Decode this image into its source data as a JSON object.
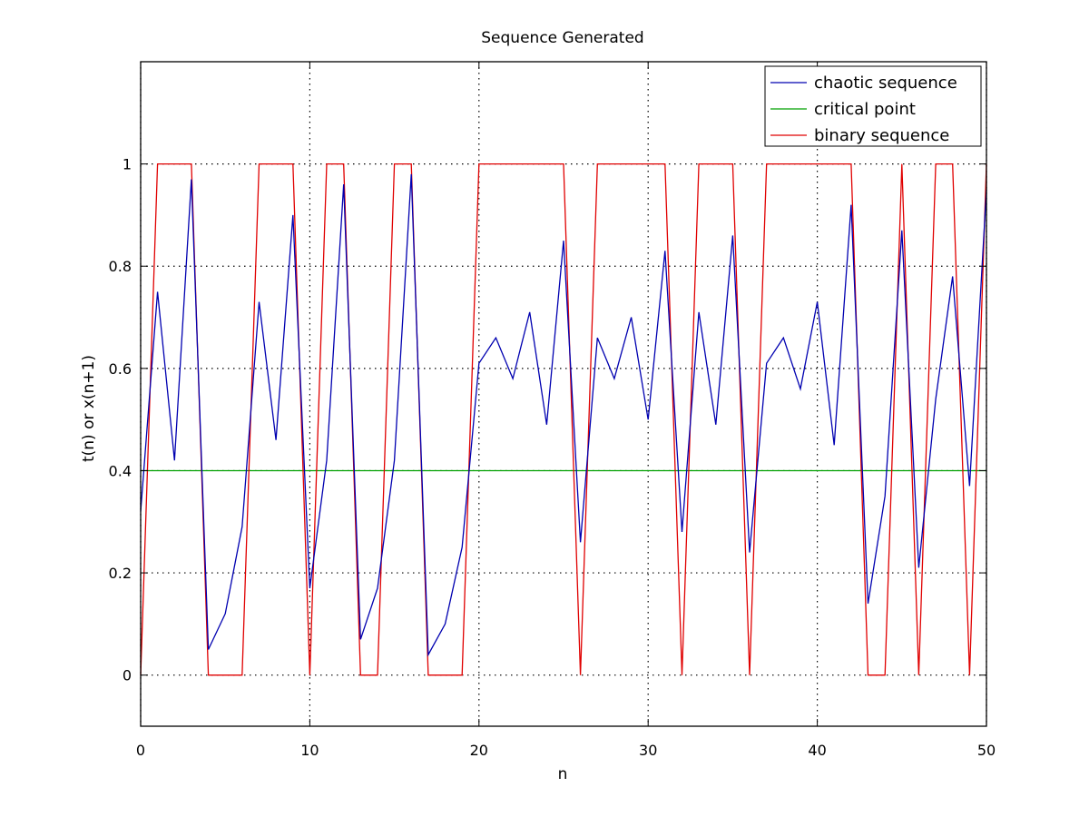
{
  "chart_data": {
    "type": "line",
    "title": "Sequence Generated",
    "xlabel": "n",
    "ylabel": "t(n) or x(n+1)",
    "xlim": [
      0,
      50
    ],
    "ylim": [
      -0.1,
      1.2
    ],
    "xticks": [
      0,
      10,
      20,
      30,
      40,
      50
    ],
    "yticks": [
      0,
      0.2,
      0.4,
      0.6,
      0.8,
      1
    ],
    "xtick_labels": [
      "0",
      "10",
      "20",
      "30",
      "40",
      "50"
    ],
    "ytick_labels": [
      "0",
      "0.2",
      "0.4",
      "0.6",
      "0.8",
      "1"
    ],
    "grid": true,
    "legend_position": "top-right",
    "x": [
      0,
      1,
      2,
      3,
      4,
      5,
      6,
      7,
      8,
      9,
      10,
      11,
      12,
      13,
      14,
      15,
      16,
      17,
      18,
      19,
      20,
      21,
      22,
      23,
      24,
      25,
      26,
      27,
      28,
      29,
      30,
      31,
      32,
      33,
      34,
      35,
      36,
      37,
      38,
      39,
      40,
      41,
      42,
      43,
      44,
      45,
      46,
      47,
      48,
      49,
      50
    ],
    "series": [
      {
        "name": "chaotic sequence",
        "color": "#0000b0",
        "values": [
          0.32,
          0.75,
          0.42,
          0.97,
          0.05,
          0.12,
          0.29,
          0.73,
          0.46,
          0.9,
          0.17,
          0.42,
          0.96,
          0.07,
          0.17,
          0.42,
          0.98,
          0.04,
          0.1,
          0.25,
          0.61,
          0.66,
          0.58,
          0.71,
          0.49,
          0.85,
          0.26,
          0.66,
          0.58,
          0.7,
          0.5,
          0.83,
          0.28,
          0.71,
          0.49,
          0.86,
          0.24,
          0.61,
          0.66,
          0.56,
          0.73,
          0.45,
          0.92,
          0.14,
          0.35,
          0.87,
          0.21,
          0.54,
          0.78,
          0.37,
          0.95
        ]
      },
      {
        "name": "critical point",
        "color": "#00a000",
        "values": [
          0.4,
          0.4,
          0.4,
          0.4,
          0.4,
          0.4,
          0.4,
          0.4,
          0.4,
          0.4,
          0.4,
          0.4,
          0.4,
          0.4,
          0.4,
          0.4,
          0.4,
          0.4,
          0.4,
          0.4,
          0.4,
          0.4,
          0.4,
          0.4,
          0.4,
          0.4,
          0.4,
          0.4,
          0.4,
          0.4,
          0.4,
          0.4,
          0.4,
          0.4,
          0.4,
          0.4,
          0.4,
          0.4,
          0.4,
          0.4,
          0.4,
          0.4,
          0.4,
          0.4,
          0.4,
          0.4,
          0.4,
          0.4,
          0.4,
          0.4,
          0.4
        ]
      },
      {
        "name": "binary sequence",
        "color": "#e00000",
        "values": [
          0,
          1,
          1,
          1,
          0,
          0,
          0,
          1,
          1,
          1,
          0,
          1,
          1,
          0,
          0,
          1,
          1,
          0,
          0,
          0,
          1,
          1,
          1,
          1,
          1,
          1,
          0,
          1,
          1,
          1,
          1,
          1,
          0,
          1,
          1,
          1,
          0,
          1,
          1,
          1,
          1,
          1,
          1,
          0,
          0,
          1,
          0,
          1,
          1,
          0,
          1
        ]
      }
    ]
  }
}
